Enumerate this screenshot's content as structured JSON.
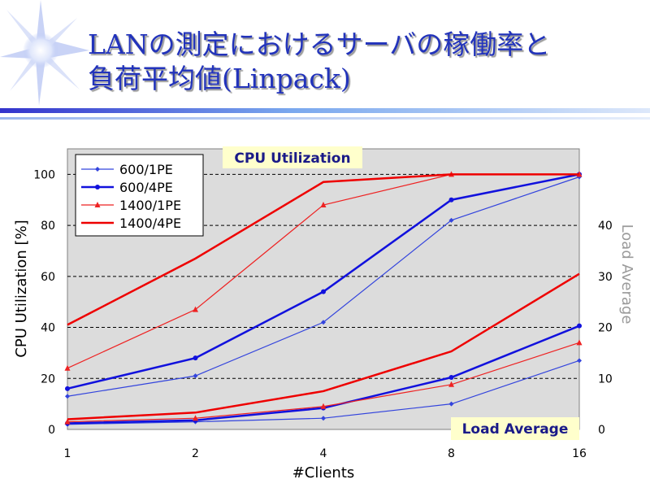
{
  "slide": {
    "title_line1": "LANの測定におけるサーバの稼働率と",
    "title_line2": "負荷平均値(Linpack)"
  },
  "chart_data": {
    "type": "line",
    "title": "",
    "x": [
      "1",
      "2",
      "4",
      "8",
      "16"
    ],
    "xlabel": "#Clients",
    "ylabel": "CPU Utilization [%]",
    "ylim": [
      0,
      110
    ],
    "yticks": [
      "0",
      "20",
      "40",
      "60",
      "80",
      "100"
    ],
    "y2label": "Load Average",
    "y2lim": [
      0,
      55
    ],
    "y2ticks": [
      "0",
      "10",
      "20",
      "30",
      "40"
    ],
    "grid": true,
    "legend_position": "top-left",
    "box_labels": {
      "cpu": "CPU Utilization",
      "load": "Load Average"
    },
    "series": [
      {
        "name": "600/1PE",
        "color": "#3344dd",
        "marker": "diamond",
        "line": "thin",
        "cpu": [
          13,
          21,
          42,
          82,
          99
        ],
        "load": [
          1.0,
          1.5,
          2.2,
          5.0,
          13.5
        ]
      },
      {
        "name": "600/4PE",
        "color": "#1111dd",
        "marker": "circle",
        "line": "thick",
        "cpu": [
          16,
          28,
          54,
          90,
          100
        ],
        "load": [
          1.2,
          1.8,
          4.2,
          10.2,
          20.3
        ]
      },
      {
        "name": "1400/1PE",
        "color": "#ee2222",
        "marker": "triangle",
        "line": "thin",
        "cpu": [
          24,
          47,
          88,
          100,
          100
        ],
        "load": [
          1.5,
          2.2,
          4.5,
          8.8,
          17.0
        ]
      },
      {
        "name": "1400/4PE",
        "color": "#ee0000",
        "marker": "none",
        "line": "thick",
        "cpu": [
          41,
          67,
          97,
          100,
          100
        ],
        "load": [
          2.0,
          3.3,
          7.5,
          15.3,
          30.5
        ]
      }
    ]
  }
}
